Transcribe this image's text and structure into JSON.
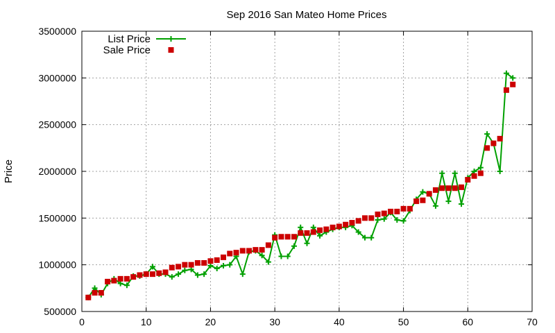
{
  "chart_data": {
    "type": "line",
    "title": "Sep 2016 San Mateo Home Prices",
    "xlabel": "",
    "ylabel": "Price",
    "xlim": [
      0,
      70
    ],
    "ylim": [
      500000,
      3500000
    ],
    "x_ticks": [
      0,
      10,
      20,
      30,
      40,
      50,
      60,
      70
    ],
    "y_ticks": [
      500000,
      1000000,
      1500000,
      2000000,
      2500000,
      3000000,
      3500000
    ],
    "grid": true,
    "legend_position": "top-left",
    "series": [
      {
        "name": "List Price",
        "style": "line-with-plus-markers",
        "color": "#00a000",
        "x": [
          1,
          2,
          3,
          4,
          5,
          6,
          7,
          8,
          9,
          10,
          11,
          12,
          13,
          14,
          15,
          16,
          17,
          18,
          19,
          20,
          21,
          22,
          23,
          24,
          25,
          26,
          27,
          28,
          29,
          30,
          31,
          32,
          33,
          34,
          35,
          36,
          37,
          38,
          39,
          40,
          41,
          42,
          43,
          44,
          45,
          46,
          47,
          48,
          49,
          50,
          51,
          52,
          53,
          54,
          55,
          56,
          57,
          58,
          59,
          60,
          61,
          62,
          63,
          64,
          65,
          66,
          67
        ],
        "values": [
          650000,
          750000,
          680000,
          800000,
          850000,
          800000,
          780000,
          880000,
          880000,
          900000,
          980000,
          900000,
          900000,
          870000,
          900000,
          940000,
          950000,
          890000,
          900000,
          990000,
          960000,
          990000,
          1000000,
          1090000,
          900000,
          1140000,
          1150000,
          1100000,
          1030000,
          1320000,
          1090000,
          1090000,
          1200000,
          1400000,
          1230000,
          1400000,
          1310000,
          1350000,
          1380000,
          1400000,
          1400000,
          1420000,
          1350000,
          1290000,
          1290000,
          1480000,
          1490000,
          1560000,
          1480000,
          1470000,
          1580000,
          1700000,
          1780000,
          1760000,
          1630000,
          1980000,
          1680000,
          1980000,
          1650000,
          1930000,
          2000000,
          2040000,
          2400000,
          2300000,
          2000000,
          3050000,
          3000000
        ]
      },
      {
        "name": "Sale Price",
        "style": "square-markers",
        "color": "#cc0000",
        "x": [
          1,
          2,
          3,
          4,
          5,
          6,
          7,
          8,
          9,
          10,
          11,
          12,
          13,
          14,
          15,
          16,
          17,
          18,
          19,
          20,
          21,
          22,
          23,
          24,
          25,
          26,
          27,
          28,
          29,
          30,
          31,
          32,
          33,
          34,
          35,
          36,
          37,
          38,
          39,
          40,
          41,
          42,
          43,
          44,
          45,
          46,
          47,
          48,
          49,
          50,
          51,
          52,
          53,
          54,
          55,
          56,
          57,
          58,
          59,
          60,
          61,
          62,
          63,
          64,
          65,
          66,
          67
        ],
        "values": [
          650000,
          700000,
          700000,
          820000,
          830000,
          850000,
          850000,
          870000,
          890000,
          900000,
          900000,
          910000,
          920000,
          970000,
          980000,
          1000000,
          1000000,
          1020000,
          1020000,
          1040000,
          1050000,
          1080000,
          1120000,
          1130000,
          1150000,
          1150000,
          1160000,
          1160000,
          1210000,
          1290000,
          1300000,
          1300000,
          1300000,
          1340000,
          1340000,
          1350000,
          1370000,
          1380000,
          1400000,
          1410000,
          1430000,
          1450000,
          1470000,
          1500000,
          1500000,
          1540000,
          1550000,
          1570000,
          1570000,
          1600000,
          1600000,
          1680000,
          1690000,
          1760000,
          1800000,
          1820000,
          1820000,
          1820000,
          1830000,
          1910000,
          1950000,
          1980000,
          2250000,
          2300000,
          2350000,
          2870000,
          2930000
        ]
      }
    ]
  }
}
